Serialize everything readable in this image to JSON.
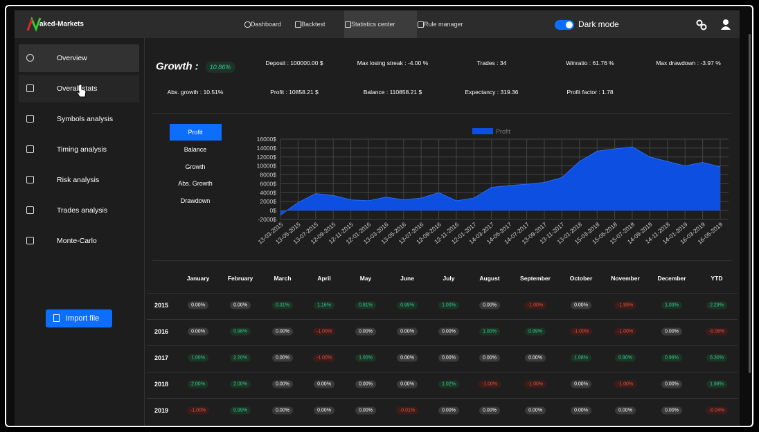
{
  "navbar": {
    "brand": "aked-Markets",
    "links": [
      "Dashboard",
      "Backtest",
      "Statistics center",
      "Rule manager"
    ],
    "dark_mode": "Dark mode"
  },
  "sidebar": {
    "items": [
      "Overview",
      "Overall stats",
      "Symbols analysis",
      "Timing analysis",
      "Risk analysis",
      "Trades analysis",
      "Monte-Carlo"
    ],
    "import": "Import file"
  },
  "stats": {
    "growth_label": "Growth :",
    "growth_value": "10.86%",
    "items": [
      "Deposit : 100000.00 $",
      "Max losing streak : -4.00 %",
      "Trades : 34",
      "Winratio : 61.76 %",
      "Max drawdown : -3.97 %",
      "Abs. growth : 10.51%",
      "Profit : 10858.21 $",
      "Balance : 110858.21 $",
      "Expectancy : 319.36",
      "Profit factor : 1.78"
    ]
  },
  "chart_tabs": [
    "Profit",
    "Balance",
    "Growth",
    "Abs. Growth",
    "Drawdown"
  ],
  "chart_data": {
    "type": "area",
    "legend": "top",
    "grid": true,
    "categories": [
      "13-03-2015",
      "13-05-2015",
      "13-07-2015",
      "12-09-2015",
      "12-11-2015",
      "12-01-2016",
      "13-03-2016",
      "13-05-2016",
      "13-07-2016",
      "12-09-2016",
      "12-11-2016",
      "12-01-2017",
      "14-03-2017",
      "14-05-2017",
      "14-07-2017",
      "13-09-2017",
      "13-11-2017",
      "13-01-2018",
      "15-03-2018",
      "15-05-2018",
      "15-07-2018",
      "14-09-2018",
      "14-11-2018",
      "14-01-2019",
      "16-03-2019",
      "16-05-2019"
    ],
    "series": [
      {
        "name": "Profit",
        "color": "#0d4fe0",
        "values": [
          -1000,
          1800,
          3800,
          3400,
          2400,
          2200,
          3000,
          2400,
          2800,
          4000,
          2200,
          2800,
          5200,
          5600,
          5900,
          6300,
          7400,
          11000,
          13300,
          13800,
          14300,
          12000,
          11000,
          10000,
          10800,
          9800
        ]
      }
    ],
    "ylim": [
      -2000,
      16000
    ],
    "yticks": [
      {
        "value": -2000,
        "label": "-2000$"
      },
      {
        "value": 0,
        "label": "0$"
      },
      {
        "value": 2000,
        "label": "2000$"
      },
      {
        "value": 4000,
        "label": "4000$"
      },
      {
        "value": 6000,
        "label": "6000$"
      },
      {
        "value": 8000,
        "label": "8000$"
      },
      {
        "value": 10000,
        "label": "10000$"
      },
      {
        "value": 12000,
        "label": "12000$"
      },
      {
        "value": 14000,
        "label": "14000$"
      },
      {
        "value": 16000,
        "label": "16000$"
      }
    ]
  },
  "table": {
    "header": [
      "January",
      "February",
      "March",
      "April",
      "May",
      "June",
      "July",
      "August",
      "September",
      "October",
      "November",
      "December",
      "YTD"
    ],
    "rows": [
      {
        "year": "2015",
        "cells": [
          "0.00%",
          "0.00%",
          "0.31%",
          "1.16%",
          "0.81%",
          "0.99%",
          "1.00%",
          "0.00%",
          "-1.00%",
          "0.00%",
          "-1.99%",
          "1.03%",
          "2.29%"
        ]
      },
      {
        "year": "2016",
        "cells": [
          "0.00%",
          "0.98%",
          "0.00%",
          "-1.00%",
          "0.00%",
          "0.00%",
          "0.00%",
          "1.00%",
          "0.99%",
          "-1.00%",
          "-1.00%",
          "0.00%",
          "-0.06%"
        ]
      },
      {
        "year": "2017",
        "cells": [
          "1.00%",
          "2.20%",
          "0.00%",
          "-1.00%",
          "1.00%",
          "0.00%",
          "0.00%",
          "0.00%",
          "0.00%",
          "1.08%",
          "0.90%",
          "0.99%",
          "6.30%"
        ]
      },
      {
        "year": "2018",
        "cells": [
          "2.00%",
          "2.00%",
          "0.00%",
          "0.00%",
          "0.00%",
          "0.00%",
          "1.02%",
          "-1.00%",
          "-1.00%",
          "0.00%",
          "-1.00%",
          "0.00%",
          "1.98%"
        ]
      },
      {
        "year": "2019",
        "cells": [
          "-1.00%",
          "0.99%",
          "0.00%",
          "0.00%",
          "0.00%",
          "-0.01%",
          "0.00%",
          "0.00%",
          "0.00%",
          "0.00%",
          "0.00%",
          "0.00%",
          "-0.04%"
        ]
      }
    ]
  }
}
